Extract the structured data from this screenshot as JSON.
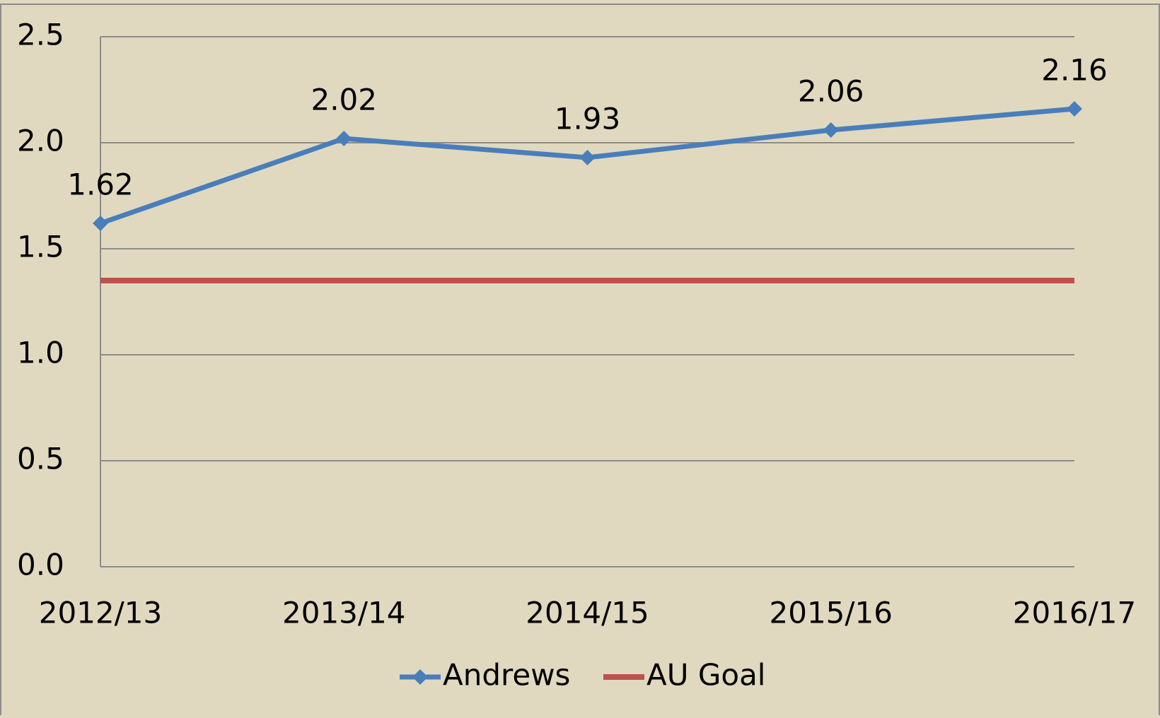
{
  "chart_data": {
    "type": "line",
    "categories": [
      "2012/13",
      "2013/14",
      "2014/15",
      "2015/16",
      "2016/17"
    ],
    "series": [
      {
        "name": "Andrews",
        "color": "#4a7ebb",
        "values": [
          1.62,
          2.02,
          1.93,
          2.06,
          2.16
        ]
      },
      {
        "name": "AU Goal",
        "color": "#c0504d",
        "values": [
          1.35,
          1.35,
          1.35,
          1.35,
          1.35
        ]
      }
    ],
    "ylim": [
      0,
      2.5
    ],
    "yticks": [
      {
        "value": 0,
        "label": "0.0"
      },
      0.5,
      {
        "value": 1,
        "label": "1.0"
      },
      1.5,
      {
        "value": 2,
        "label": "2.0"
      },
      2.5
    ],
    "grid": true,
    "legend": "bottom"
  }
}
